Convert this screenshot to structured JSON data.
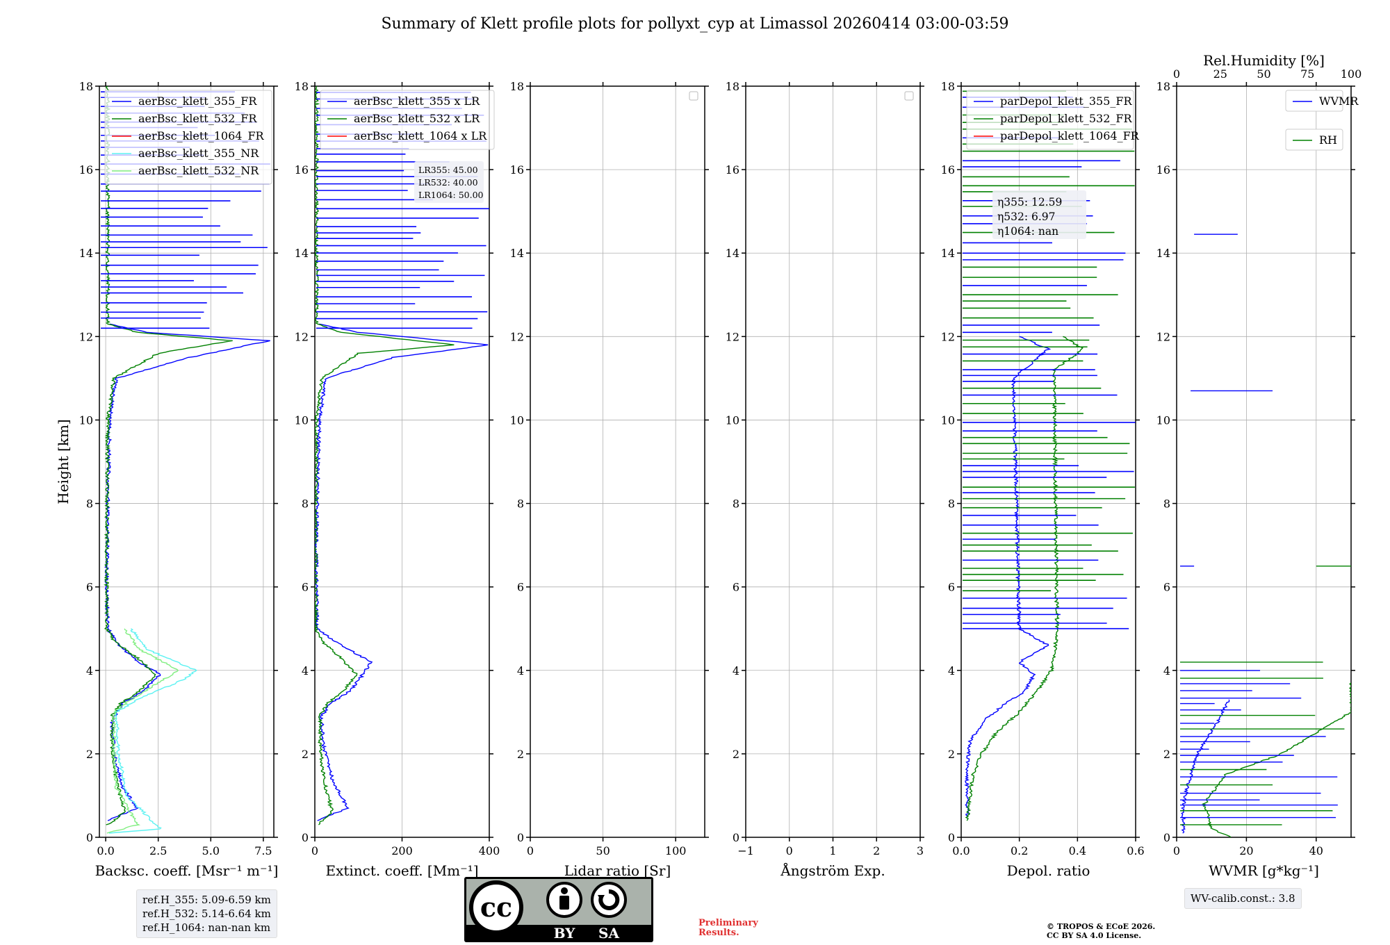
{
  "title": "Summary of Klett profile plots for pollyxt_cyp at Limassol 20260414 03:00-03:59",
  "colors": {
    "c355": "#0000ff",
    "c532": "#008000",
    "c1064": "#ff0000",
    "c355nr": "#5cf2f2",
    "c532nr": "#80ee80"
  },
  "chart_data": [
    {
      "type": "line",
      "id": "bsc",
      "xlabel": "Backsc. coeff. [Msr⁻¹ m⁻¹]",
      "ylabel": "Height [km]",
      "xlim": [
        -0.3,
        8.0
      ],
      "ylim": [
        0,
        18
      ],
      "xticks": [
        0,
        2.5,
        5,
        7.5
      ],
      "xtick_labels": [
        "0.0",
        "2.5",
        "5.0",
        "7.5"
      ],
      "yticks": [
        0,
        2,
        4,
        6,
        8,
        10,
        12,
        14,
        16,
        18
      ],
      "ytick_labels": [
        "0",
        "2",
        "4",
        "6",
        "8",
        "10",
        "12",
        "14",
        "16",
        "18"
      ],
      "legend": [
        "aerBsc_klett_355_FR",
        "aerBsc_klett_532_FR",
        "aerBsc_klett_1064_FR",
        "aerBsc_klett_355_NR",
        "aerBsc_klett_532_NR"
      ],
      "series": [
        {
          "name": "aerBsc_klett_355_FR",
          "color": "#0000ff",
          "points": [
            [
              0.1,
              0.4
            ],
            [
              1.5,
              0.7
            ],
            [
              0.8,
              1.2
            ],
            [
              0.4,
              2.0
            ],
            [
              0.3,
              2.8
            ],
            [
              0.8,
              3.2
            ],
            [
              1.8,
              3.5
            ],
            [
              2.6,
              3.9
            ],
            [
              1.6,
              4.2
            ],
            [
              0.6,
              4.6
            ],
            [
              0.1,
              5.0
            ],
            [
              0.05,
              6
            ],
            [
              0.1,
              8
            ],
            [
              0.2,
              10
            ],
            [
              0.5,
              11
            ],
            [
              4,
              11.5
            ],
            [
              7.8,
              11.9
            ],
            [
              2,
              12.1
            ],
            [
              0.2,
              12.3
            ]
          ]
        },
        {
          "name": "aerBsc_klett_532_FR",
          "color": "#008000",
          "points": [
            [
              0.1,
              0.3
            ],
            [
              0.9,
              0.6
            ],
            [
              0.5,
              1.4
            ],
            [
              0.3,
              2.2
            ],
            [
              0.3,
              2.9
            ],
            [
              0.7,
              3.2
            ],
            [
              1.6,
              3.5
            ],
            [
              2.4,
              3.9
            ],
            [
              1.5,
              4.3
            ],
            [
              0.4,
              4.7
            ],
            [
              0.05,
              5.0
            ],
            [
              0.05,
              7
            ],
            [
              0.1,
              10
            ],
            [
              0.4,
              11
            ],
            [
              2.5,
              11.6
            ],
            [
              6.0,
              11.9
            ],
            [
              1.5,
              12.1
            ],
            [
              0.1,
              12.3
            ],
            [
              0.1,
              18
            ]
          ]
        },
        {
          "name": "aerBsc_klett_355_NR",
          "color": "#5cf2f2",
          "points": [
            [
              0.1,
              0.1
            ],
            [
              2.6,
              0.2
            ],
            [
              1.0,
              1.0
            ],
            [
              0.6,
              2.0
            ],
            [
              0.5,
              3.0
            ],
            [
              1.5,
              3.3
            ],
            [
              3.8,
              3.8
            ],
            [
              4.3,
              4.0
            ],
            [
              2.0,
              4.5
            ],
            [
              1.2,
              5.0
            ]
          ]
        },
        {
          "name": "aerBsc_klett_532_NR",
          "color": "#80ee80",
          "points": [
            [
              0.1,
              0.1
            ],
            [
              1.5,
              0.3
            ],
            [
              0.5,
              1.2
            ],
            [
              0.4,
              2.0
            ],
            [
              0.4,
              3.0
            ],
            [
              1.2,
              3.3
            ],
            [
              2.8,
              3.8
            ],
            [
              3.5,
              4.0
            ],
            [
              1.6,
              4.5
            ],
            [
              0.9,
              5.0
            ]
          ]
        }
      ],
      "notes": [
        "ref.H_355: 5.09-6.59 km",
        "ref.H_532: 5.14-6.64 km",
        "ref.H_1064: nan-nan km"
      ]
    },
    {
      "type": "line",
      "id": "ext",
      "xlabel": "Extinct. coeff. [Mm⁻¹]",
      "xlim": [
        0,
        400
      ],
      "ylim": [
        0,
        18
      ],
      "xticks": [
        0,
        200,
        400
      ],
      "xtick_labels": [
        "0",
        "200",
        "400"
      ],
      "yticks": [
        0,
        2,
        4,
        6,
        8,
        10,
        12,
        14,
        16,
        18
      ],
      "ytick_labels": [
        "0",
        "2",
        "4",
        "6",
        "8",
        "10",
        "12",
        "14",
        "16",
        "18"
      ],
      "legend": [
        "aerBsc_klett_355 x LR",
        "aerBsc_klett_532 x LR",
        "aerBsc_klett_1064 x LR"
      ],
      "lr": [
        "LR355: 45.00",
        "LR532: 40.00",
        "LR1064: 50.00"
      ],
      "series": [
        {
          "name": "aerBsc_klett_355 x LR",
          "color": "#0000ff",
          "points": [
            [
              5,
              0.4
            ],
            [
              75,
              0.7
            ],
            [
              40,
              1.4
            ],
            [
              20,
              2.2
            ],
            [
              15,
              2.9
            ],
            [
              35,
              3.2
            ],
            [
              80,
              3.5
            ],
            [
              110,
              3.9
            ],
            [
              130,
              4.2
            ],
            [
              60,
              4.6
            ],
            [
              5,
              5.0
            ],
            [
              3,
              7
            ],
            [
              10,
              10
            ],
            [
              25,
              11
            ],
            [
              180,
              11.5
            ],
            [
              400,
              11.8
            ],
            [
              100,
              12.1
            ],
            [
              10,
              12.3
            ]
          ]
        },
        {
          "name": "aerBsc_klett_532 x LR",
          "color": "#008000",
          "points": [
            [
              5,
              0.3
            ],
            [
              40,
              0.6
            ],
            [
              20,
              1.4
            ],
            [
              12,
              2.2
            ],
            [
              12,
              2.9
            ],
            [
              28,
              3.2
            ],
            [
              64,
              3.5
            ],
            [
              96,
              3.9
            ],
            [
              60,
              4.3
            ],
            [
              16,
              4.7
            ],
            [
              2,
              5.0
            ],
            [
              2,
              7
            ],
            [
              4,
              10
            ],
            [
              16,
              11
            ],
            [
              100,
              11.6
            ],
            [
              320,
              11.8
            ],
            [
              60,
              12.1
            ],
            [
              4,
              12.3
            ],
            [
              4,
              18
            ]
          ]
        }
      ]
    },
    {
      "type": "line",
      "id": "lr",
      "xlabel": "Lidar ratio [Sr]",
      "xlim": [
        0,
        120
      ],
      "ylim": [
        0,
        18
      ],
      "xticks": [
        0,
        50,
        100
      ],
      "xtick_labels": [
        "0",
        "50",
        "100"
      ],
      "yticks": [
        0,
        2,
        4,
        6,
        8,
        10,
        12,
        14,
        16,
        18
      ],
      "ytick_labels": [
        "0",
        "2",
        "4",
        "6",
        "8",
        "10",
        "12",
        "14",
        "16",
        "18"
      ],
      "series": []
    },
    {
      "type": "line",
      "id": "ang",
      "xlabel": "Ångström Exp.",
      "xlim": [
        -1,
        3
      ],
      "ylim": [
        0,
        18
      ],
      "xticks": [
        -1,
        0,
        1,
        2,
        3
      ],
      "xtick_labels": [
        "−1",
        "0",
        "1",
        "2",
        "3"
      ],
      "yticks": [
        0,
        2,
        4,
        6,
        8,
        10,
        12,
        14,
        16,
        18
      ],
      "ytick_labels": [
        "0",
        "2",
        "4",
        "6",
        "8",
        "10",
        "12",
        "14",
        "16",
        "18"
      ],
      "series": []
    },
    {
      "type": "line",
      "id": "dep",
      "xlabel": "Depol. ratio",
      "xlim": [
        0,
        0.6
      ],
      "ylim": [
        0,
        18
      ],
      "xticks": [
        0,
        0.2,
        0.4,
        0.6
      ],
      "xtick_labels": [
        "0.0",
        "0.2",
        "0.4",
        "0.6"
      ],
      "yticks": [
        0,
        2,
        4,
        6,
        8,
        10,
        12,
        14,
        16,
        18
      ],
      "ytick_labels": [
        "0",
        "2",
        "4",
        "6",
        "8",
        "10",
        "12",
        "14",
        "16",
        "18"
      ],
      "legend": [
        "parDepol_klett_355_FR",
        "parDepol_klett_532_FR",
        "parDepol_klett_1064_FR"
      ],
      "eta": [
        "η355: 12.59",
        "η532: 6.97",
        "η1064: nan"
      ],
      "series": [
        {
          "name": "parDepol_klett_355_FR",
          "color": "#0000ff",
          "points": [
            [
              0.02,
              0.5
            ],
            [
              0.02,
              1.5
            ],
            [
              0.03,
              2.3
            ],
            [
              0.08,
              2.8
            ],
            [
              0.15,
              3.2
            ],
            [
              0.22,
              3.5
            ],
            [
              0.25,
              3.9
            ],
            [
              0.2,
              4.2
            ],
            [
              0.3,
              4.6
            ],
            [
              0.2,
              5.0
            ],
            [
              0.18,
              11
            ],
            [
              0.3,
              11.7
            ],
            [
              0.2,
              12.0
            ]
          ]
        },
        {
          "name": "parDepol_klett_532_FR",
          "color": "#008000",
          "points": [
            [
              0.02,
              0.4
            ],
            [
              0.04,
              1.5
            ],
            [
              0.07,
              2.0
            ],
            [
              0.12,
              2.5
            ],
            [
              0.2,
              3.0
            ],
            [
              0.26,
              3.5
            ],
            [
              0.31,
              4.0
            ],
            [
              0.32,
              4.4
            ],
            [
              0.33,
              4.9
            ],
            [
              0.32,
              11.2
            ],
            [
              0.42,
              11.7
            ],
            [
              0.35,
              12.0
            ]
          ]
        }
      ]
    },
    {
      "type": "line",
      "id": "wv",
      "xlabel": "WVMR [g*kg⁻¹]",
      "x2label": "Rel.Humidity [%]",
      "xlim": [
        0,
        50
      ],
      "x2lim": [
        0,
        100
      ],
      "ylim": [
        0,
        18
      ],
      "xticks": [
        0,
        20,
        40
      ],
      "xtick_labels": [
        "0",
        "20",
        "40"
      ],
      "x2ticks": [
        0,
        25,
        50,
        75,
        100
      ],
      "x2tick_labels": [
        "0",
        "25",
        "50",
        "75",
        "100"
      ],
      "yticks": [
        0,
        2,
        4,
        6,
        8,
        10,
        12,
        14,
        16,
        18
      ],
      "ytick_labels": [
        "0",
        "2",
        "4",
        "6",
        "8",
        "10",
        "12",
        "14",
        "16",
        "18"
      ],
      "legend": [
        "WVMR",
        "RH"
      ],
      "note": "WV-calib.const.: 3.8",
      "series": [
        {
          "name": "WVMR",
          "color": "#0000ff",
          "points": [
            [
              2,
              0.1
            ],
            [
              1.8,
              0.6
            ],
            [
              3,
              1.2
            ],
            [
              6,
              2.0
            ],
            [
              12,
              2.8
            ],
            [
              15,
              3.3
            ]
          ]
        },
        {
          "name": "RH",
          "color": "#008000",
          "points": [
            [
              16,
              0.0
            ],
            [
              10,
              0.2
            ],
            [
              8,
              0.8
            ],
            [
              14,
              1.5
            ],
            [
              30,
              2.0
            ],
            [
              50,
              3.0
            ],
            [
              50,
              3.7
            ]
          ]
        }
      ]
    }
  ],
  "cc_license": {
    "label1": "BY",
    "label2": "SA",
    "cc": "cc"
  },
  "footer": {
    "preliminary": "Preliminary Results.",
    "prelim1": "Preliminary",
    "prelim2": "Results.",
    "copyright1": "© TROPOS & ECoE 2026.",
    "copyright2": "CC BY SA 4.0 License."
  }
}
